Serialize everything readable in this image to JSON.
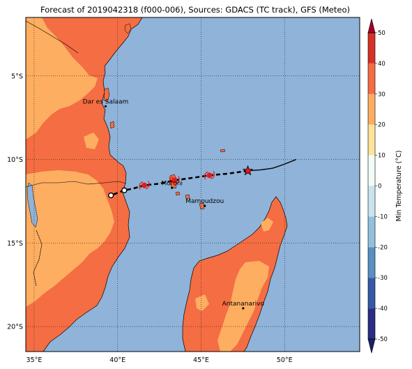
{
  "title": "Forecast of 2019042318 (f000-006), Sources: GDACS (TC track), GFS (Meteo)",
  "map": {
    "lon_range": [
      34.5,
      54.5
    ],
    "lat_range": [
      -21.5,
      -1.5
    ],
    "x_ticks": [
      {
        "value": 35,
        "label": "35°E"
      },
      {
        "value": 40,
        "label": "40°E"
      },
      {
        "value": 45,
        "label": "45°E"
      },
      {
        "value": 50,
        "label": "50°E"
      }
    ],
    "y_ticks": [
      {
        "value": -5,
        "label": "5°S"
      },
      {
        "value": -10,
        "label": "10°S"
      },
      {
        "value": -15,
        "label": "15°S"
      },
      {
        "value": -20,
        "label": "20°S"
      }
    ],
    "cities": [
      {
        "name": "Dar es Salaam",
        "lon": 39.28,
        "lat": -6.82
      },
      {
        "name": "Moroni",
        "lon": 43.26,
        "lat": -11.7
      },
      {
        "name": "Mamoudzou",
        "lon": 45.22,
        "lat": -12.78
      },
      {
        "name": "Antananarivo",
        "lon": 47.52,
        "lat": -18.91
      }
    ],
    "track_past": [
      [
        50.7,
        -10.0
      ],
      [
        50.0,
        -10.28
      ],
      [
        49.3,
        -10.52
      ],
      [
        48.6,
        -10.62
      ],
      [
        47.8,
        -10.68
      ]
    ],
    "track_forecast": [
      [
        47.8,
        -10.68
      ],
      [
        46.6,
        -10.85
      ],
      [
        45.5,
        -10.95
      ],
      [
        44.5,
        -11.1
      ],
      [
        43.4,
        -11.25
      ],
      [
        42.5,
        -11.45
      ],
      [
        41.6,
        -11.55
      ],
      [
        40.9,
        -11.75
      ],
      [
        40.4,
        -11.85
      ],
      [
        39.6,
        -12.15
      ]
    ],
    "current_position": [
      47.8,
      -10.68
    ],
    "forecast_markers": [
      [
        45.5,
        -10.95
      ],
      [
        43.4,
        -11.25
      ],
      [
        41.6,
        -11.55
      ]
    ],
    "forecast_circles": [
      [
        40.4,
        -11.85
      ],
      [
        39.6,
        -12.15
      ]
    ],
    "colors": {
      "ocean": "#8fb3d9",
      "land_warm": "#f46d43",
      "land_mild": "#fdae61",
      "track": "#000000",
      "marker": "#e31a1c"
    }
  },
  "colorbar": {
    "label": "Min Temperature (°C)",
    "min": -50,
    "max": 50,
    "ticks": [
      50,
      40,
      30,
      20,
      10,
      0,
      -10,
      -20,
      -30,
      -40,
      -50
    ],
    "bands": [
      {
        "from": -50,
        "to": -40,
        "color": "#2c2d84"
      },
      {
        "from": -40,
        "to": -30,
        "color": "#3658a6"
      },
      {
        "from": -30,
        "to": -20,
        "color": "#5a8fc1"
      },
      {
        "from": -20,
        "to": -10,
        "color": "#92c0dd"
      },
      {
        "from": -10,
        "to": 0,
        "color": "#c8e5ef"
      },
      {
        "from": 0,
        "to": 10,
        "color": "#f2fbf6"
      },
      {
        "from": 10,
        "to": 20,
        "color": "#fee39a"
      },
      {
        "from": 20,
        "to": 30,
        "color": "#fdae61"
      },
      {
        "from": 30,
        "to": 40,
        "color": "#f46d43"
      },
      {
        "from": 40,
        "to": 50,
        "color": "#d73027"
      }
    ],
    "extend_low_color": "#1d1f6a",
    "extend_high_color": "#a50026"
  }
}
